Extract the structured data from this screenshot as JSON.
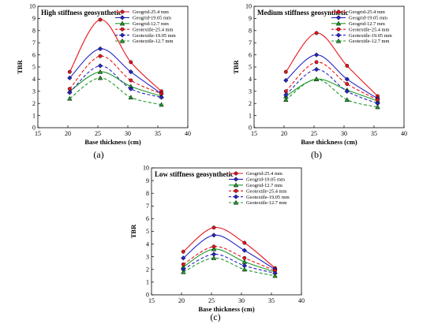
{
  "chart_data": [
    {
      "type": "line",
      "panel": "(a)",
      "title": "High stiffness geosynthetic",
      "xlabel": "Base thickness (cm)",
      "ylabel": "TBR",
      "xlim": [
        15,
        40
      ],
      "ylim": [
        0,
        10
      ],
      "xticks": [
        15,
        20,
        25,
        30,
        35,
        40
      ],
      "yticks": [
        0,
        1,
        2,
        3,
        4,
        5,
        6,
        7,
        8,
        9,
        10
      ],
      "legend_position": "top-right",
      "grid": false,
      "x": [
        20.3,
        25.4,
        30.5,
        35.6
      ],
      "series": [
        {
          "name": "Geogrid-25.4 mm",
          "values": [
            4.6,
            8.9,
            5.4,
            3.0
          ],
          "color": "#e8141b",
          "dash": "solid",
          "marker": "circle"
        },
        {
          "name": "Geogrid-19.05 mm",
          "values": [
            4.1,
            6.5,
            4.6,
            2.8
          ],
          "color": "#2525c8",
          "dash": "solid",
          "marker": "diamond"
        },
        {
          "name": "Geogrid-12.7 mm",
          "values": [
            3.0,
            4.6,
            3.4,
            2.6
          ],
          "color": "#1f9a2a",
          "dash": "solid",
          "marker": "triangle"
        },
        {
          "name": "Geotextile-25.4 mm",
          "values": [
            3.2,
            5.9,
            3.9,
            2.8
          ],
          "color": "#e8141b",
          "dash": "dashed",
          "marker": "circle"
        },
        {
          "name": "Geotextile-19.05 mm",
          "values": [
            2.9,
            5.1,
            3.2,
            2.5
          ],
          "color": "#2525c8",
          "dash": "dashed",
          "marker": "diamond"
        },
        {
          "name": "Geotextile-12.7 mm",
          "values": [
            2.4,
            4.1,
            2.5,
            1.9
          ],
          "color": "#1f9a2a",
          "dash": "dashed",
          "marker": "triangle"
        }
      ]
    },
    {
      "type": "line",
      "panel": "(b)",
      "title": "Medium stiffness geosynthetic",
      "xlabel": "Base thickness (cm)",
      "ylabel": "TBR",
      "xlim": [
        15,
        40
      ],
      "ylim": [
        0,
        10
      ],
      "xticks": [
        15,
        20,
        25,
        30,
        35,
        40
      ],
      "yticks": [
        0,
        1,
        2,
        3,
        4,
        5,
        6,
        7,
        8,
        9,
        10
      ],
      "legend_position": "top-right",
      "grid": false,
      "x": [
        20.3,
        25.4,
        30.5,
        35.6
      ],
      "series": [
        {
          "name": "Geogrid-25.4 mm",
          "values": [
            4.6,
            7.8,
            5.1,
            2.6
          ],
          "color": "#e8141b",
          "dash": "solid",
          "marker": "circle"
        },
        {
          "name": "Geogrid-19.05 mm",
          "values": [
            3.9,
            6.0,
            4.0,
            2.4
          ],
          "color": "#2525c8",
          "dash": "solid",
          "marker": "diamond"
        },
        {
          "name": "Geogrid-12.7 mm",
          "values": [
            2.6,
            4.0,
            3.1,
            2.2
          ],
          "color": "#1f9a2a",
          "dash": "solid",
          "marker": "triangle"
        },
        {
          "name": "Geotextile-25.4 mm",
          "values": [
            3.0,
            5.4,
            3.6,
            2.3
          ],
          "color": "#e8141b",
          "dash": "dashed",
          "marker": "circle"
        },
        {
          "name": "Geotextile-19.05 mm",
          "values": [
            2.7,
            4.8,
            3.0,
            2.0
          ],
          "color": "#2525c8",
          "dash": "dashed",
          "marker": "diamond"
        },
        {
          "name": "Geotextile-12.7 mm",
          "values": [
            2.3,
            4.0,
            2.3,
            1.7
          ],
          "color": "#1f9a2a",
          "dash": "dashed",
          "marker": "triangle"
        }
      ]
    },
    {
      "type": "line",
      "panel": "(c)",
      "title": "Low stiffness geosynthetic",
      "xlabel": "Base thickness (cm)",
      "ylabel": "TBR",
      "xlim": [
        15,
        40
      ],
      "ylim": [
        0,
        10
      ],
      "xticks": [
        15,
        20,
        25,
        30,
        35,
        40
      ],
      "yticks": [
        0,
        1,
        2,
        3,
        4,
        5,
        6,
        7,
        8,
        9,
        10
      ],
      "legend_position": "top-right",
      "grid": false,
      "x": [
        20.3,
        25.4,
        30.5,
        35.6
      ],
      "series": [
        {
          "name": "Geogrid-25.4 mm",
          "values": [
            3.4,
            5.3,
            4.1,
            2.1
          ],
          "color": "#e8141b",
          "dash": "solid",
          "marker": "circle"
        },
        {
          "name": "Geogrid-19.05 mm",
          "values": [
            2.9,
            4.7,
            3.5,
            2.0
          ],
          "color": "#2525c8",
          "dash": "solid",
          "marker": "diamond"
        },
        {
          "name": "Geogrid-12.7 mm",
          "values": [
            2.2,
            3.6,
            2.6,
            1.8
          ],
          "color": "#1f9a2a",
          "dash": "solid",
          "marker": "triangle"
        },
        {
          "name": "Geotextile-25.4 mm",
          "values": [
            2.4,
            3.8,
            2.9,
            1.9
          ],
          "color": "#e8141b",
          "dash": "dashed",
          "marker": "circle"
        },
        {
          "name": "Geotextile-19.05 mm",
          "values": [
            2.0,
            3.2,
            2.3,
            1.7
          ],
          "color": "#2525c8",
          "dash": "dashed",
          "marker": "diamond"
        },
        {
          "name": "Geotextile-12.7 mm",
          "values": [
            1.8,
            2.9,
            2.0,
            1.5
          ],
          "color": "#1f9a2a",
          "dash": "dashed",
          "marker": "triangle"
        }
      ]
    }
  ]
}
